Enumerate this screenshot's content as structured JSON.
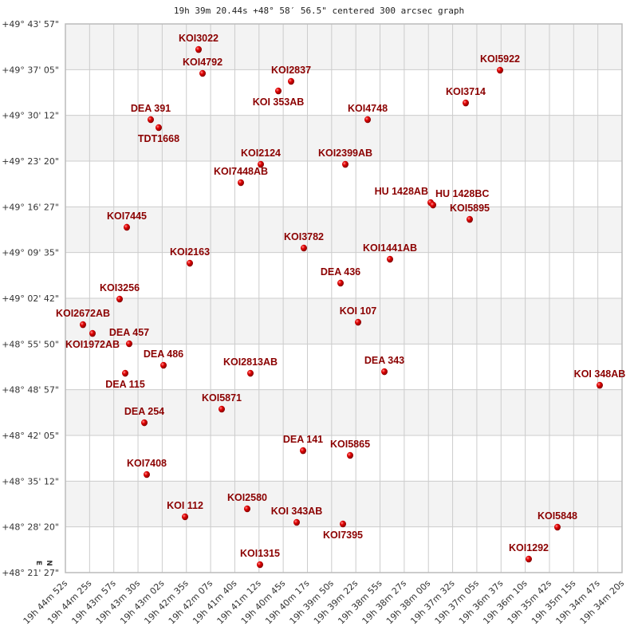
{
  "chart_data": {
    "type": "scatter",
    "title": "19h 39m 20.44s +48° 58′ 56.5\" centered 300 arcsec graph",
    "xlabel": "",
    "ylabel": "",
    "x_units": "RA (degrees)",
    "y_units": "Dec (degrees)",
    "xlim": [
      296.2167,
      293.5831
    ],
    "ylim": [
      49.7325,
      48.3575
    ],
    "grid": true,
    "alternating_bands": true,
    "colors": {
      "marker": "#dd0000",
      "label": "#8b0000",
      "band": "#f3f3f3",
      "grid": "#cccccc"
    },
    "compass": {
      "north": "N",
      "east": "E"
    },
    "x_tick_labels": [
      "19h 44m 52s",
      "19h 44m 25s",
      "19h 43m 57s",
      "19h 43m 30s",
      "19h 43m 02s",
      "19h 42m 35s",
      "19h 42m 07s",
      "19h 41m 40s",
      "19h 41m 12s",
      "19h 40m 45s",
      "19h 40m 17s",
      "19h 39m 50s",
      "19h 39m 22s",
      "19h 38m 55s",
      "19h 38m 27s",
      "19h 38m 00s",
      "19h 37m 32s",
      "19h 37m 05s",
      "19h 36m 37s",
      "19h 36m 10s",
      "19h 35m 42s",
      "19h 35m 15s",
      "19h 34m 47s",
      "19h 34m 20s"
    ],
    "y_tick_labels": [
      "+49° 43' 57\"",
      "+49° 37' 05\"",
      "+49° 30' 12\"",
      "+49° 23' 20\"",
      "+49° 16' 27\"",
      "+49° 09' 35\"",
      "+49° 02' 42\"",
      "+48° 55' 50\"",
      "+48° 48' 57\"",
      "+48° 42' 05\"",
      "+48° 35' 12\"",
      "+48° 28' 20\"",
      "+48° 21' 27\""
    ],
    "points": [
      {
        "name": "KOI3022",
        "ra": 295.5866,
        "dec": 49.6685
      },
      {
        "name": "KOI4792",
        "ra": 295.5677,
        "dec": 49.6086
      },
      {
        "name": "KOI2837",
        "ra": 295.1489,
        "dec": 49.5886
      },
      {
        "name": "KOI 353AB",
        "ra": 295.2093,
        "dec": 49.5646
      },
      {
        "name": "KOI5922",
        "ra": 294.1604,
        "dec": 49.6166
      },
      {
        "name": "KOI3714",
        "ra": 294.3227,
        "dec": 49.5346
      },
      {
        "name": "KOI4748",
        "ra": 294.7867,
        "dec": 49.4927
      },
      {
        "name": "DEA 391",
        "ra": 295.813,
        "dec": 49.4927
      },
      {
        "name": "TDT1668",
        "ra": 295.7753,
        "dec": 49.4727
      },
      {
        "name": "KOI2124",
        "ra": 295.2923,
        "dec": 49.3807
      },
      {
        "name": "KOI2399AB",
        "ra": 294.8924,
        "dec": 49.3807
      },
      {
        "name": "KOI7448AB",
        "ra": 295.3866,
        "dec": 49.3348
      },
      {
        "name": "HU 1428AB",
        "ra": 294.4887,
        "dec": 49.2848
      },
      {
        "name": "HU 1428BC",
        "ra": 294.4773,
        "dec": 49.2788
      },
      {
        "name": "KOI5895",
        "ra": 294.3038,
        "dec": 49.2428
      },
      {
        "name": "KOI7445",
        "ra": 295.9262,
        "dec": 49.2229
      },
      {
        "name": "KOI3782",
        "ra": 295.0886,
        "dec": 49.1709
      },
      {
        "name": "KOI2163",
        "ra": 295.6281,
        "dec": 49.1329
      },
      {
        "name": "KOI1441AB",
        "ra": 294.6811,
        "dec": 49.1429
      },
      {
        "name": "DEA 436",
        "ra": 294.915,
        "dec": 49.083
      },
      {
        "name": "KOI3256",
        "ra": 295.9601,
        "dec": 49.043
      },
      {
        "name": "KOI 107",
        "ra": 294.832,
        "dec": 48.985
      },
      {
        "name": "KOI2672AB",
        "ra": 296.1337,
        "dec": 48.979
      },
      {
        "name": "KOI1972AB",
        "ra": 296.0884,
        "dec": 48.957
      },
      {
        "name": "DEA 457",
        "ra": 295.9149,
        "dec": 48.9311
      },
      {
        "name": "DEA 486",
        "ra": 295.7526,
        "dec": 48.8771
      },
      {
        "name": "DEA 115",
        "ra": 295.9337,
        "dec": 48.8571
      },
      {
        "name": "KOI2813AB",
        "ra": 295.3414,
        "dec": 48.8571
      },
      {
        "name": "DEA 343",
        "ra": 294.7075,
        "dec": 48.8611
      },
      {
        "name": "KOI 348AB",
        "ra": 293.6888,
        "dec": 48.8271
      },
      {
        "name": "KOI5871",
        "ra": 295.4772,
        "dec": 48.7672
      },
      {
        "name": "DEA 254",
        "ra": 295.8432,
        "dec": 48.7332
      },
      {
        "name": "DEA 141",
        "ra": 295.0923,
        "dec": 48.6632
      },
      {
        "name": "KOI5865",
        "ra": 294.8697,
        "dec": 48.6513
      },
      {
        "name": "KOI7408",
        "ra": 295.8319,
        "dec": 48.6033
      },
      {
        "name": "KOI2580",
        "ra": 295.3565,
        "dec": 48.5174
      },
      {
        "name": "KOI 112",
        "ra": 295.6507,
        "dec": 48.4974
      },
      {
        "name": "KOI 343AB",
        "ra": 295.1225,
        "dec": 48.4834
      },
      {
        "name": "KOI7395",
        "ra": 294.9037,
        "dec": 48.4794
      },
      {
        "name": "KOI5848",
        "ra": 293.8888,
        "dec": 48.4714
      },
      {
        "name": "KOI1292",
        "ra": 294.0246,
        "dec": 48.3915
      },
      {
        "name": "KOI1315",
        "ra": 295.2961,
        "dec": 48.3775
      }
    ]
  }
}
